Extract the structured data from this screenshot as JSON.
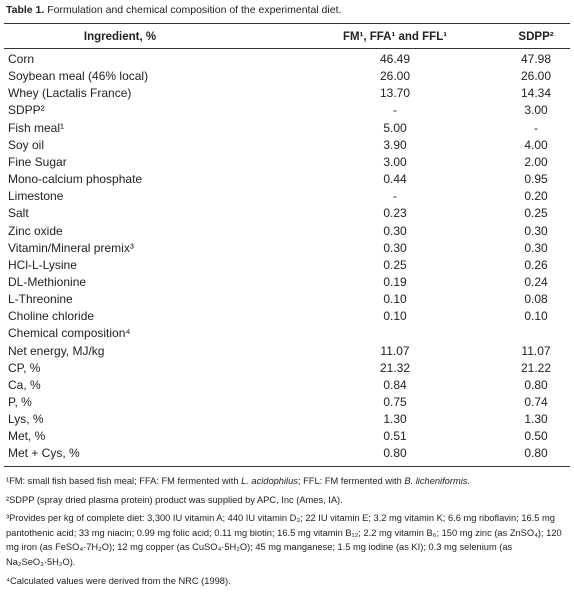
{
  "title": {
    "label": "Table 1.",
    "text": "Formulation and chemical composition of the experimental diet."
  },
  "table": {
    "header": [
      "Ingredient, %",
      "FM¹, FFA¹ and FFL¹",
      "SDPP²"
    ],
    "rows": [
      [
        "Corn",
        "46.49",
        "47.98"
      ],
      [
        "Soybean meal (46% local)",
        "26.00",
        "26.00"
      ],
      [
        "Whey (Lactalis France)",
        "13.70",
        "14.34"
      ],
      [
        "SDPP²",
        "-",
        "3.00"
      ],
      [
        "Fish meal¹",
        "5.00",
        "-"
      ],
      [
        "Soy oil",
        "3.90",
        "4.00"
      ],
      [
        "Fine Sugar",
        "3.00",
        "2.00"
      ],
      [
        "Mono-calcium phosphate",
        "0.44",
        "0.95"
      ],
      [
        "Limestone",
        "-",
        "0.20"
      ],
      [
        "Salt",
        "0.23",
        "0.25"
      ],
      [
        "Zinc oxide",
        "0.30",
        "0.30"
      ],
      [
        "Vitamin/Mineral premix³",
        "0.30",
        "0.30"
      ],
      [
        "HCl-L-Lysine",
        "0.25",
        "0.26"
      ],
      [
        "DL-Methionine",
        "0.19",
        "0.24"
      ],
      [
        "L-Threonine",
        "0.10",
        "0.08"
      ],
      [
        "Choline chloride",
        "0.10",
        "0.10"
      ],
      [
        "Chemical composition⁴"
      ],
      [
        "Net energy, MJ/kg",
        "11.07",
        "11.07"
      ],
      [
        "CP, %",
        "21.32",
        "21.22"
      ],
      [
        "Ca, %",
        "0.84",
        "0.80"
      ],
      [
        "P, %",
        "0.75",
        "0.74"
      ],
      [
        "Lys, %",
        "1.30",
        "1.30"
      ],
      [
        "Met, %",
        "0.51",
        "0.50"
      ],
      [
        "Met + Cys, %",
        "0.80",
        "0.80"
      ]
    ]
  },
  "footnotes": [
    [
      {
        "text": "¹FM: small fish based fish meal; FFA: FM fermented with "
      },
      {
        "text": "L. acidophilus",
        "italic": true
      },
      {
        "text": "; FFL: FM fermented with "
      },
      {
        "text": "B. licheniformis",
        "italic": true
      },
      {
        "text": "."
      }
    ],
    [
      {
        "text": "²SDPP (spray dried plasma protein) product was supplied by APC, Inc (Ames, IA)."
      }
    ],
    [
      {
        "text": "³Provides per kg of complete diet: 3,300 IU vitamin A; 440 IU vitamin D₃; 22 IU vitamin E; 3.2 mg vitamin K; 6.6 mg riboflavin; 16.5 mg pantothenic acid; 33 mg niacin; 0.99 mg folic acid; 0.11 mg biotin; 16.5 mg vitamin B₁₂; 2.2 mg vitamin B₆; 150 mg zinc (as ZnSO₄); 120 mg iron (as FeSO₄·7H₂O); 12 mg copper (as CuSO₄·5H₂O); 45 mg manganese; 1.5 mg iodine (as KI); 0.3 mg selenium (as Na₂SeO₃·5H₂O)."
      }
    ],
    [
      {
        "text": "⁴Calculated values were derived from the NRC (1998)."
      }
    ]
  ]
}
